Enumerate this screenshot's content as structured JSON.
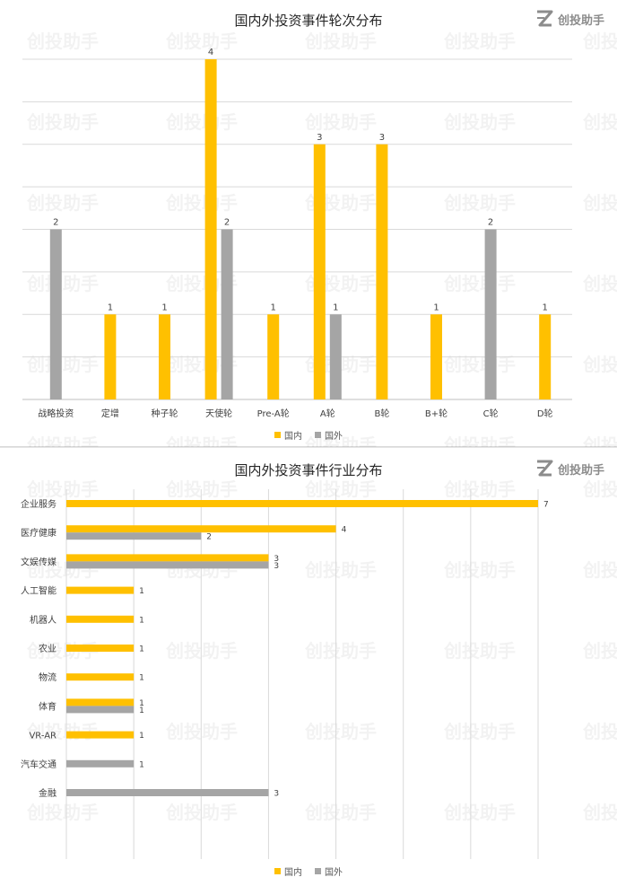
{
  "brand": {
    "name": "创投助手",
    "logo_icon": "z-logo-icon"
  },
  "colors": {
    "domestic": "#FFC000",
    "foreign": "#A5A5A5",
    "grid": "#d9d9d9",
    "axis": "#bfbfbf"
  },
  "chart_data": [
    {
      "type": "bar",
      "title": "国内外投资事件轮次分布",
      "categories": [
        "战略投资",
        "定增",
        "种子轮",
        "天使轮",
        "Pre-A轮",
        "A轮",
        "B轮",
        "B+轮",
        "C轮",
        "D轮"
      ],
      "series": [
        {
          "name": "国内",
          "color": "#FFC000",
          "values": [
            null,
            1,
            1,
            4,
            1,
            3,
            3,
            1,
            null,
            1
          ]
        },
        {
          "name": "国外",
          "color": "#A5A5A5",
          "values": [
            2,
            null,
            null,
            2,
            null,
            1,
            null,
            null,
            2,
            null
          ]
        }
      ],
      "ylim": [
        0,
        4
      ],
      "grid": true,
      "legend": "bottom-center"
    },
    {
      "type": "bar",
      "orientation": "horizontal",
      "title": "国内外投资事件行业分布",
      "categories": [
        "企业服务",
        "医疗健康",
        "文娱传媒",
        "人工智能",
        "机器人",
        "农业",
        "物流",
        "体育",
        "VR-AR",
        "汽车交通",
        "金融"
      ],
      "series": [
        {
          "name": "国内",
          "color": "#FFC000",
          "values": [
            7,
            4,
            3,
            1,
            1,
            1,
            1,
            1,
            1,
            null,
            null
          ]
        },
        {
          "name": "国外",
          "color": "#A5A5A5",
          "values": [
            null,
            2,
            3,
            null,
            null,
            null,
            null,
            1,
            null,
            1,
            3
          ]
        }
      ],
      "xlim": [
        0,
        7
      ],
      "grid": true,
      "legend": "bottom-center"
    }
  ]
}
